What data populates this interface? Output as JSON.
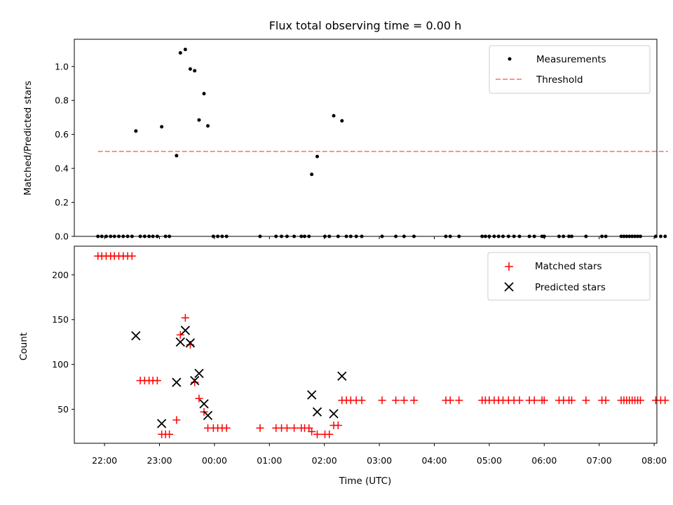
{
  "chart_data": [
    {
      "type": "scatter",
      "title": "Flux total observing time = 0.00 h",
      "xlabel": "",
      "ylabel": "Matched/Predicted stars",
      "xlim": [
        21.45,
        32.05
      ],
      "ylim": [
        0.0,
        1.16
      ],
      "yticks": [
        0.0,
        0.2,
        0.4,
        0.6,
        0.8,
        1.0
      ],
      "ytick_labels": [
        "0.0",
        "0.2",
        "0.4",
        "0.6",
        "0.8",
        "1.0"
      ],
      "legend_position": "upper right",
      "series": [
        {
          "name": "Measurements",
          "marker": "dot",
          "color": "#000000",
          "x": [
            22.57,
            23.04,
            23.31,
            23.38,
            23.47,
            23.56,
            23.64,
            23.72,
            23.81,
            23.88,
            25.77,
            25.87,
            26.17,
            26.32,
            21.88,
            21.95,
            22.03,
            22.11,
            22.18,
            22.26,
            22.34,
            22.42,
            22.5,
            22.65,
            22.73,
            22.81,
            22.88,
            22.96,
            23.11,
            23.18,
            23.98,
            24.06,
            24.14,
            24.22,
            24.83,
            25.12,
            25.22,
            25.32,
            25.45,
            25.58,
            25.64,
            25.72,
            26.01,
            26.09,
            26.25,
            26.4,
            26.48,
            26.58,
            26.68,
            27.05,
            27.3,
            27.45,
            27.63,
            28.21,
            28.29,
            28.45,
            28.87,
            28.93,
            29.0,
            29.09,
            29.17,
            29.25,
            29.35,
            29.45,
            29.55,
            29.73,
            29.82,
            29.96,
            30.0,
            30.27,
            30.35,
            30.45,
            30.5,
            30.76,
            31.05,
            31.12,
            31.4,
            31.45,
            31.5,
            31.55,
            31.6,
            31.65,
            31.7,
            31.75,
            32.03,
            32.12,
            32.2
          ],
          "y": [
            0.62,
            0.645,
            0.475,
            1.08,
            1.1,
            0.985,
            0.975,
            0.685,
            0.84,
            0.65,
            0.365,
            0.47,
            0.71,
            0.68,
            0,
            0,
            0,
            0,
            0,
            0,
            0,
            0,
            0,
            0,
            0,
            0,
            0,
            0,
            0,
            0,
            0,
            0,
            0,
            0,
            0,
            0,
            0,
            0,
            0,
            0,
            0,
            0,
            0,
            0,
            0,
            0,
            0,
            0,
            0,
            0,
            0,
            0,
            0,
            0,
            0,
            0,
            0,
            0,
            0,
            0,
            0,
            0,
            0,
            0,
            0,
            0,
            0,
            0,
            0,
            0,
            0,
            0,
            0,
            0,
            0,
            0,
            0,
            0,
            0,
            0,
            0,
            0,
            0,
            0,
            0,
            0,
            0
          ]
        },
        {
          "name": "Threshold",
          "marker": "dashed-line",
          "color": "#ff8080",
          "x": [
            21.88,
            32.25
          ],
          "y": [
            0.5,
            0.5
          ]
        }
      ]
    },
    {
      "type": "scatter",
      "title": "",
      "xlabel": "Time (UTC)",
      "ylabel": "Count",
      "xlim": [
        21.45,
        32.05
      ],
      "ylim": [
        12,
        232
      ],
      "xticks": [
        22,
        23,
        24,
        25,
        26,
        27,
        28,
        29,
        30,
        31,
        32
      ],
      "xtick_labels": [
        "22:00",
        "23:00",
        "00:00",
        "01:00",
        "02:00",
        "03:00",
        "04:00",
        "05:00",
        "06:00",
        "07:00",
        "08:00"
      ],
      "yticks": [
        50,
        100,
        150,
        200
      ],
      "ytick_labels": [
        "50",
        "100",
        "150",
        "200"
      ],
      "legend_position": "upper right",
      "series": [
        {
          "name": "Matched stars",
          "marker": "plus",
          "color": "#ff0000",
          "x": [
            21.88,
            21.95,
            22.03,
            22.11,
            22.18,
            22.26,
            22.34,
            22.42,
            22.5,
            22.65,
            22.73,
            22.81,
            22.88,
            22.96,
            23.04,
            23.11,
            23.18,
            23.31,
            23.38,
            23.47,
            23.56,
            23.64,
            23.72,
            23.81,
            23.88,
            23.98,
            24.06,
            24.14,
            24.22,
            24.83,
            25.12,
            25.22,
            25.32,
            25.45,
            25.58,
            25.64,
            25.72,
            25.77,
            25.87,
            26.01,
            26.09,
            26.17,
            26.25,
            26.32,
            26.4,
            26.48,
            26.58,
            26.68,
            27.05,
            27.3,
            27.45,
            27.63,
            28.21,
            28.29,
            28.45,
            28.87,
            28.93,
            29.0,
            29.09,
            29.17,
            29.25,
            29.35,
            29.45,
            29.55,
            29.73,
            29.82,
            29.96,
            30.0,
            30.27,
            30.35,
            30.45,
            30.5,
            30.76,
            31.05,
            31.12,
            31.4,
            31.45,
            31.5,
            31.55,
            31.6,
            31.65,
            31.7,
            31.75,
            32.03,
            32.12,
            32.2
          ],
          "y": [
            221,
            221,
            221,
            221,
            221,
            221,
            221,
            221,
            221,
            82,
            82,
            82,
            82,
            82,
            22,
            22,
            22,
            38,
            133,
            152,
            122,
            80,
            62,
            47,
            29,
            29,
            29,
            29,
            29,
            29,
            29,
            29,
            29,
            29,
            29,
            29,
            29,
            25,
            22,
            22,
            22,
            32,
            32,
            60,
            60,
            60,
            60,
            60,
            60,
            60,
            60,
            60,
            60,
            60,
            60,
            60,
            60,
            60,
            60,
            60,
            60,
            60,
            60,
            60,
            60,
            60,
            60,
            60,
            60,
            60,
            60,
            60,
            60,
            60,
            60,
            60,
            60,
            60,
            60,
            60,
            60,
            60,
            60,
            60,
            60,
            60
          ]
        },
        {
          "name": "Predicted stars",
          "marker": "x",
          "color": "#000000",
          "x": [
            22.57,
            23.04,
            23.31,
            23.38,
            23.47,
            23.56,
            23.64,
            23.72,
            23.81,
            23.88,
            25.77,
            25.87,
            26.17,
            26.32
          ],
          "y": [
            132,
            34,
            80,
            125,
            138,
            124,
            82,
            90,
            56,
            43,
            66,
            47,
            45,
            87
          ]
        }
      ]
    }
  ]
}
